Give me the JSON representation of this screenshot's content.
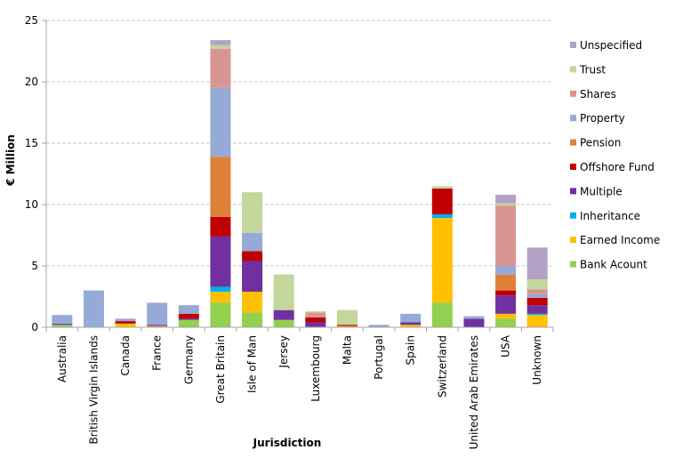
{
  "chart_data": {
    "type": "bar",
    "stacked": true,
    "title": "",
    "xlabel": "Jurisdiction",
    "ylabel": "€ Million",
    "ylim": [
      0,
      25
    ],
    "yticks": [
      "0",
      "5",
      "10",
      "15",
      "20",
      "25"
    ],
    "grid": true,
    "legend_position": "right",
    "categories": [
      "Australia",
      "British Virgin Islands",
      "Canada",
      "France",
      "Germany",
      "Great Britain",
      "Isle of Man",
      "Jersey",
      "Luxembourg",
      "Malta",
      "Portugal",
      "Spain",
      "Switzerland",
      "United Arab Emirates",
      "USA",
      "Unknown"
    ],
    "series": [
      {
        "name": "Bank Acount",
        "color": "#92d050",
        "values": [
          0.2,
          0,
          0,
          0,
          0.6,
          2.0,
          1.2,
          0.6,
          0,
          0,
          0,
          0,
          2.0,
          0,
          0.7,
          0
        ]
      },
      {
        "name": "Earned Income",
        "color": "#ffc000",
        "values": [
          0,
          0,
          0.3,
          0.1,
          0,
          0.9,
          1.7,
          0,
          0,
          0.1,
          0,
          0.2,
          6.9,
          0,
          0.4,
          1.0
        ]
      },
      {
        "name": "Inheritance",
        "color": "#00b0f0",
        "values": [
          0,
          0,
          0,
          0,
          0,
          0.4,
          0,
          0,
          0,
          0,
          0,
          0,
          0.3,
          0,
          0,
          0.1
        ]
      },
      {
        "name": "Multiple",
        "color": "#7030a0",
        "values": [
          0.1,
          0,
          0,
          0.1,
          0.1,
          4.1,
          2.5,
          0.8,
          0.4,
          0,
          0,
          0.2,
          0,
          0.7,
          1.5,
          0.7
        ]
      },
      {
        "name": "Offshore Fund",
        "color": "#c00000",
        "values": [
          0,
          0,
          0.2,
          0,
          0.4,
          1.6,
          0.8,
          0,
          0.4,
          0.1,
          0,
          0,
          2.1,
          0,
          0.4,
          0.6
        ]
      },
      {
        "name": "Pension",
        "color": "#e0813a",
        "values": [
          0,
          0,
          0,
          0,
          0,
          4.9,
          0,
          0,
          0,
          0,
          0,
          0,
          0,
          0,
          1.3,
          0
        ]
      },
      {
        "name": "Property",
        "color": "#95aad6",
        "values": [
          0.7,
          3.0,
          0.2,
          1.8,
          0.7,
          5.6,
          1.5,
          0,
          0,
          0,
          0.2,
          0.7,
          0,
          0.2,
          0.7,
          0.3
        ]
      },
      {
        "name": "Shares",
        "color": "#d99594",
        "values": [
          0,
          0,
          0,
          0,
          0,
          3.2,
          0,
          0,
          0.4,
          0,
          0,
          0,
          0,
          0,
          4.9,
          0.4
        ]
      },
      {
        "name": "Trust",
        "color": "#c3d69b",
        "values": [
          0,
          0,
          0,
          0,
          0,
          0.3,
          3.3,
          2.9,
          0.1,
          1.2,
          0,
          0,
          0.2,
          0,
          0.2,
          0.8
        ]
      },
      {
        "name": "Unspecified",
        "color": "#b3a2c7",
        "values": [
          0,
          0,
          0,
          0,
          0,
          0.4,
          0,
          0,
          0,
          0,
          0,
          0,
          0,
          0,
          0.7,
          2.6
        ]
      }
    ]
  }
}
